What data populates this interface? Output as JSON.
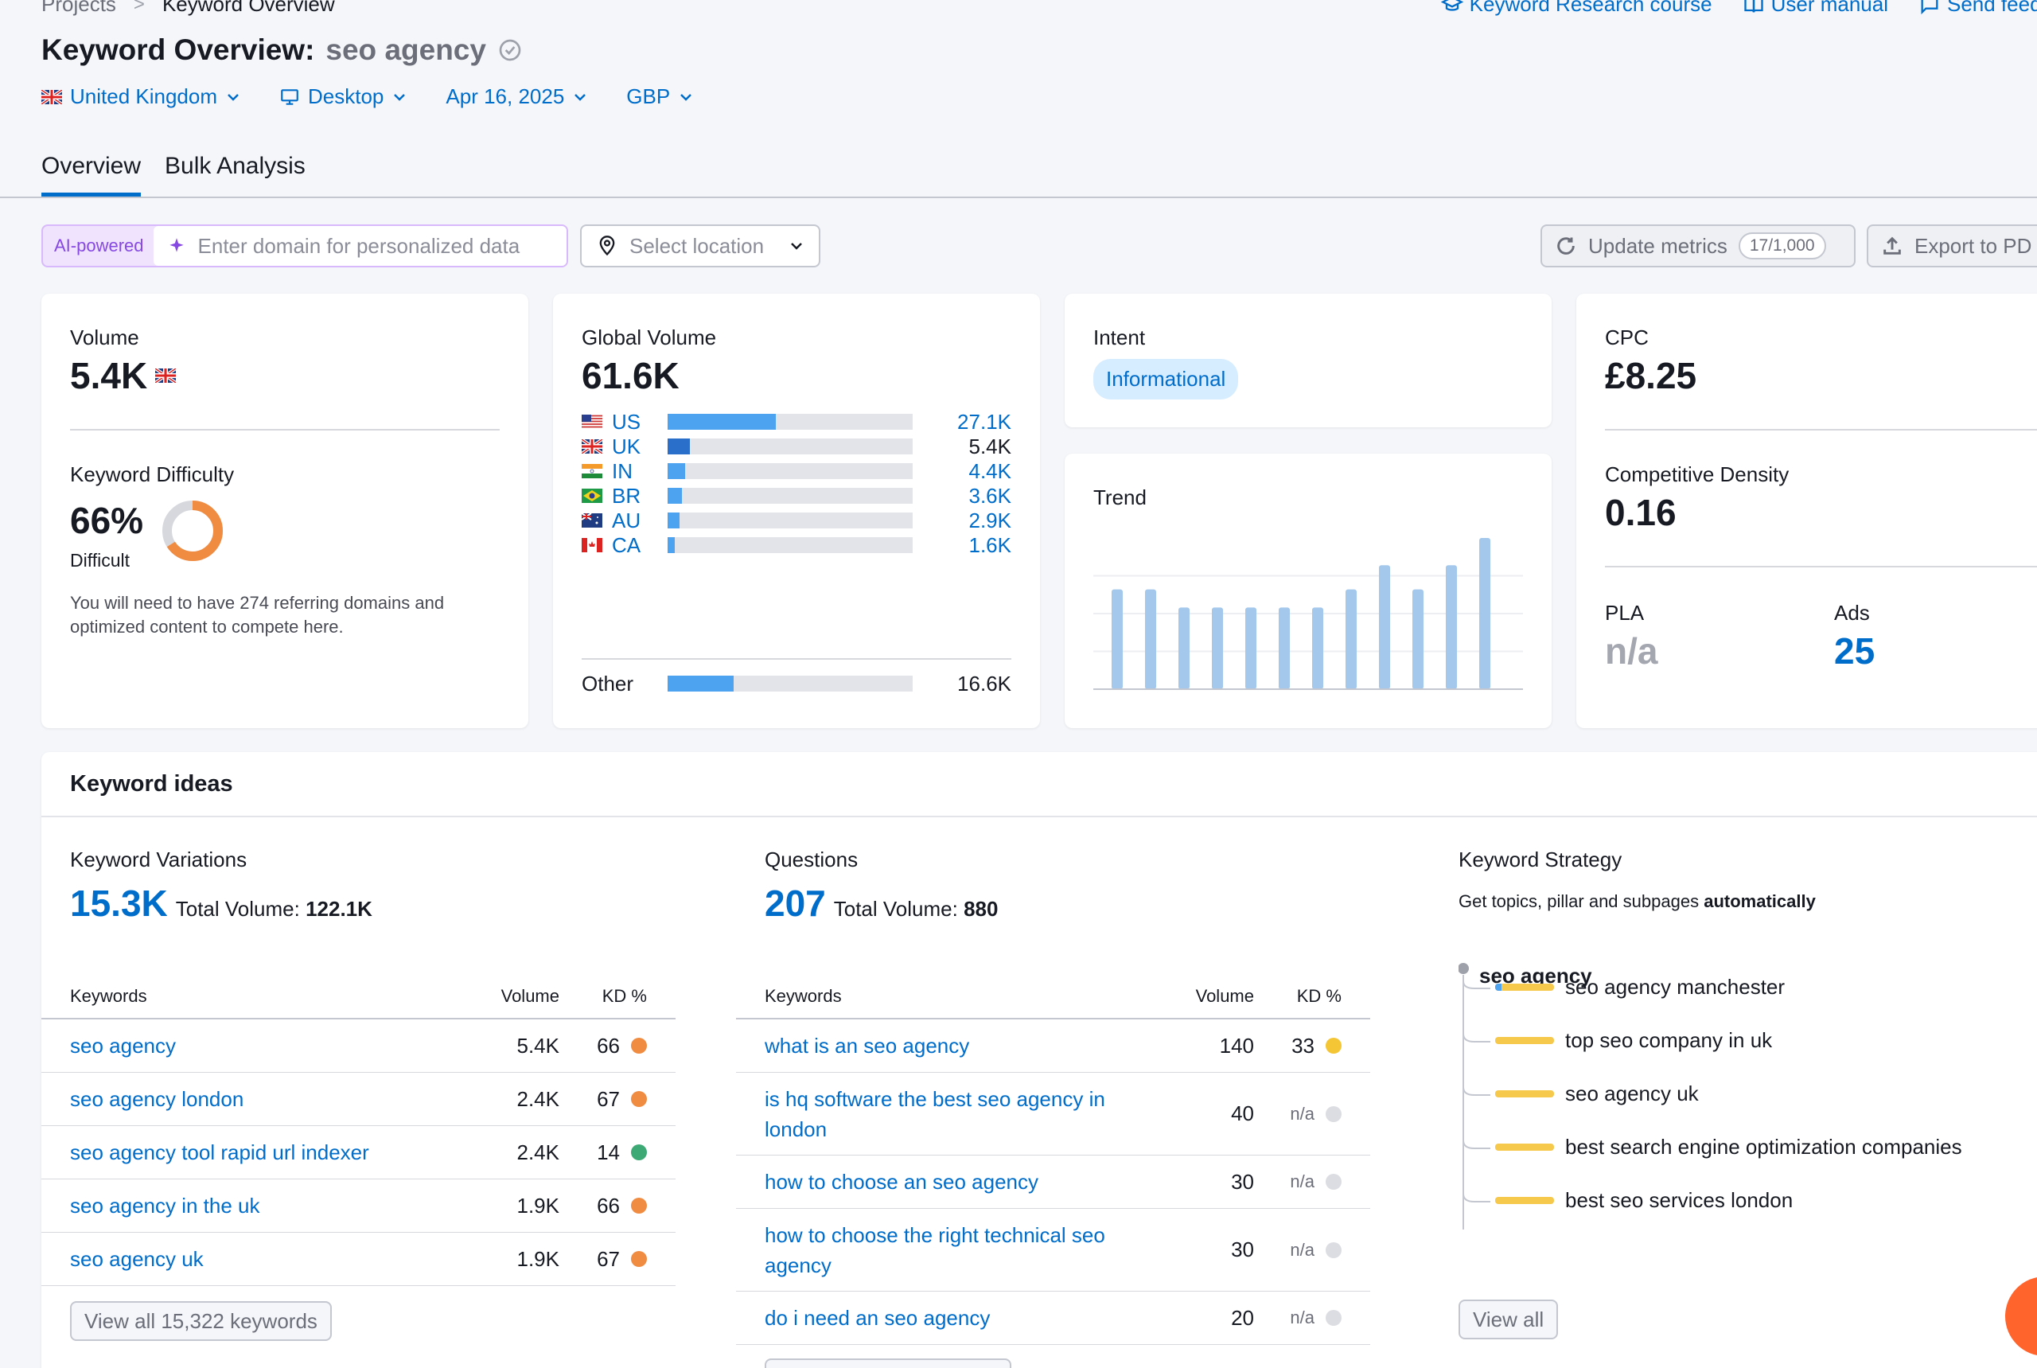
{
  "breadcrumb": {
    "parent": "Projects",
    "separator": ">",
    "current": "Keyword Overview"
  },
  "top_links": {
    "course": "Keyword Research course",
    "manual": "User manual",
    "feedback": "Send feedb"
  },
  "title": {
    "label": "Keyword Overview:",
    "keyword": "seo agency"
  },
  "filters": {
    "country": "United Kingdom",
    "device": "Desktop",
    "date": "Apr 16, 2025",
    "currency": "GBP"
  },
  "tabs": [
    {
      "label": "Overview"
    },
    {
      "label": "Bulk Analysis"
    }
  ],
  "toolbar": {
    "ai_label": "AI-powered",
    "domain_placeholder": "Enter domain for personalized data",
    "location_placeholder": "Select location",
    "update_label": "Update metrics",
    "update_counter": "17/1,000",
    "export_label": "Export to PD"
  },
  "volume_card": {
    "label": "Volume",
    "value": "5.4K",
    "kd_label": "Keyword Difficulty",
    "kd_value": "66%",
    "kd_level": "Difficult",
    "kd_percent": 66,
    "kd_note": "You will need to have 274 referring domains and optimized content to compete here."
  },
  "global_card": {
    "label": "Global Volume",
    "value": "61.6K",
    "countries": [
      {
        "code": "US",
        "value": "27.1K",
        "share": 0.44,
        "flag": "us"
      },
      {
        "code": "UK",
        "value": "5.4K",
        "share": 0.09,
        "flag": "uk"
      },
      {
        "code": "IN",
        "value": "4.4K",
        "share": 0.07,
        "flag": "in"
      },
      {
        "code": "BR",
        "value": "3.6K",
        "share": 0.06,
        "flag": "br"
      },
      {
        "code": "AU",
        "value": "2.9K",
        "share": 0.05,
        "flag": "au"
      },
      {
        "code": "CA",
        "value": "1.6K",
        "share": 0.03,
        "flag": "ca"
      }
    ],
    "other_label": "Other",
    "other_value": "16.6K",
    "other_share": 0.27
  },
  "intent_card": {
    "label": "Intent",
    "badge": "Informational"
  },
  "trend_card": {
    "label": "Trend",
    "chart_data": {
      "type": "bar",
      "values": [
        0.66,
        0.66,
        0.54,
        0.54,
        0.54,
        0.54,
        0.54,
        0.66,
        0.82,
        0.66,
        0.82,
        1.0
      ],
      "ylim": [
        0,
        1
      ],
      "color": "#a3c8ec"
    }
  },
  "cpc_card": {
    "label": "CPC",
    "value": "£8.25",
    "cd_label": "Competitive Density",
    "cd_value": "0.16",
    "pla_label": "PLA",
    "pla_value": "n/a",
    "ads_label": "Ads",
    "ads_value": "25"
  },
  "ideas": {
    "title": "Keyword ideas",
    "variations": {
      "heading": "Keyword Variations",
      "count": "15.3K",
      "total_label": "Total Volume:",
      "total_value": "122.1K",
      "columns": [
        "Keywords",
        "Volume",
        "KD %"
      ],
      "rows": [
        {
          "keyword": "seo agency",
          "volume": "5.4K",
          "kd": "66",
          "color": "#f08c42"
        },
        {
          "keyword": "seo agency london",
          "volume": "2.4K",
          "kd": "67",
          "color": "#f08c42"
        },
        {
          "keyword": "seo agency tool rapid url indexer",
          "volume": "2.4K",
          "kd": "14",
          "color": "#3daa76"
        },
        {
          "keyword": "seo agency in the uk",
          "volume": "1.9K",
          "kd": "66",
          "color": "#f08c42"
        },
        {
          "keyword": "seo agency uk",
          "volume": "1.9K",
          "kd": "67",
          "color": "#f08c42"
        }
      ],
      "view_all": "View all 15,322 keywords"
    },
    "questions": {
      "heading": "Questions",
      "count": "207",
      "total_label": "Total Volume:",
      "total_value": "880",
      "columns": [
        "Keywords",
        "Volume",
        "KD %"
      ],
      "rows": [
        {
          "keyword": "what is an seo agency",
          "volume": "140",
          "kd": "33",
          "color": "#f4c535"
        },
        {
          "keyword": "is hq software the best seo agency in london",
          "volume": "40",
          "kd": "n/a",
          "color": "#dcdde2"
        },
        {
          "keyword": "how to choose an seo agency",
          "volume": "30",
          "kd": "n/a",
          "color": "#dcdde2"
        },
        {
          "keyword": "how to choose the right technical seo agency",
          "volume": "30",
          "kd": "n/a",
          "color": "#dcdde2"
        },
        {
          "keyword": "do i need an seo agency",
          "volume": "20",
          "kd": "n/a",
          "color": "#dcdde2"
        }
      ]
    },
    "strategy": {
      "heading": "Keyword Strategy",
      "sub_prefix": "Get topics, pillar and subpages",
      "sub_bold": "automatically",
      "root": "seo agency",
      "items": [
        "seo agency manchester",
        "top seo company in uk",
        "seo agency uk",
        "best search engine optimization companies",
        "best seo services london"
      ],
      "view_all": "View all"
    }
  }
}
